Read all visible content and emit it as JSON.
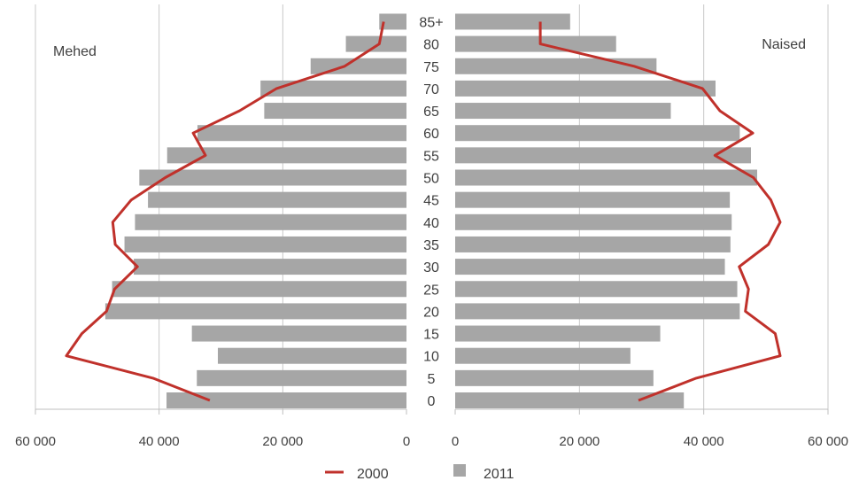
{
  "chart_data": {
    "type": "bar",
    "subtype": "population-pyramid",
    "age_groups": [
      "0",
      "5",
      "10",
      "15",
      "20",
      "25",
      "30",
      "35",
      "40",
      "45",
      "50",
      "55",
      "60",
      "65",
      "70",
      "75",
      "80",
      "85+"
    ],
    "left_label": "Mehed",
    "right_label": "Naised",
    "x_ticks_left": [
      "60 000",
      "40 000",
      "20 000",
      "0"
    ],
    "x_ticks_right": [
      "0",
      "20 000",
      "40 000",
      "60 000"
    ],
    "xlim": [
      0,
      60000
    ],
    "grid": true,
    "legend_position": "bottom",
    "series": [
      {
        "name": "2011",
        "kind": "bar",
        "color": "#a6a6a6",
        "male": [
          38800,
          33900,
          30500,
          34700,
          48700,
          47600,
          44100,
          45600,
          43900,
          41800,
          43200,
          38700,
          33800,
          23000,
          23600,
          15500,
          9800,
          4400
        ],
        "female": [
          36800,
          31900,
          28200,
          33000,
          45800,
          45400,
          43400,
          44300,
          44500,
          44200,
          48600,
          47600,
          45800,
          34700,
          41900,
          32400,
          25900,
          18500
        ]
      },
      {
        "name": "2000",
        "kind": "line",
        "color": "#c0312b",
        "male": [
          31800,
          41000,
          55000,
          52500,
          48500,
          47200,
          43500,
          47100,
          47500,
          44500,
          39000,
          32500,
          34500,
          27000,
          21000,
          10000,
          4400,
          3700
        ],
        "female": [
          29500,
          38800,
          52300,
          51500,
          46700,
          47200,
          45700,
          50400,
          52300,
          50800,
          48000,
          41800,
          47900,
          42600,
          39800,
          28800,
          13700,
          13700
        ]
      }
    ]
  },
  "legend": {
    "line_label": "2000",
    "bar_label": "2011",
    "line_icon": "line-swatch-icon",
    "bar_icon": "bar-swatch-icon"
  }
}
